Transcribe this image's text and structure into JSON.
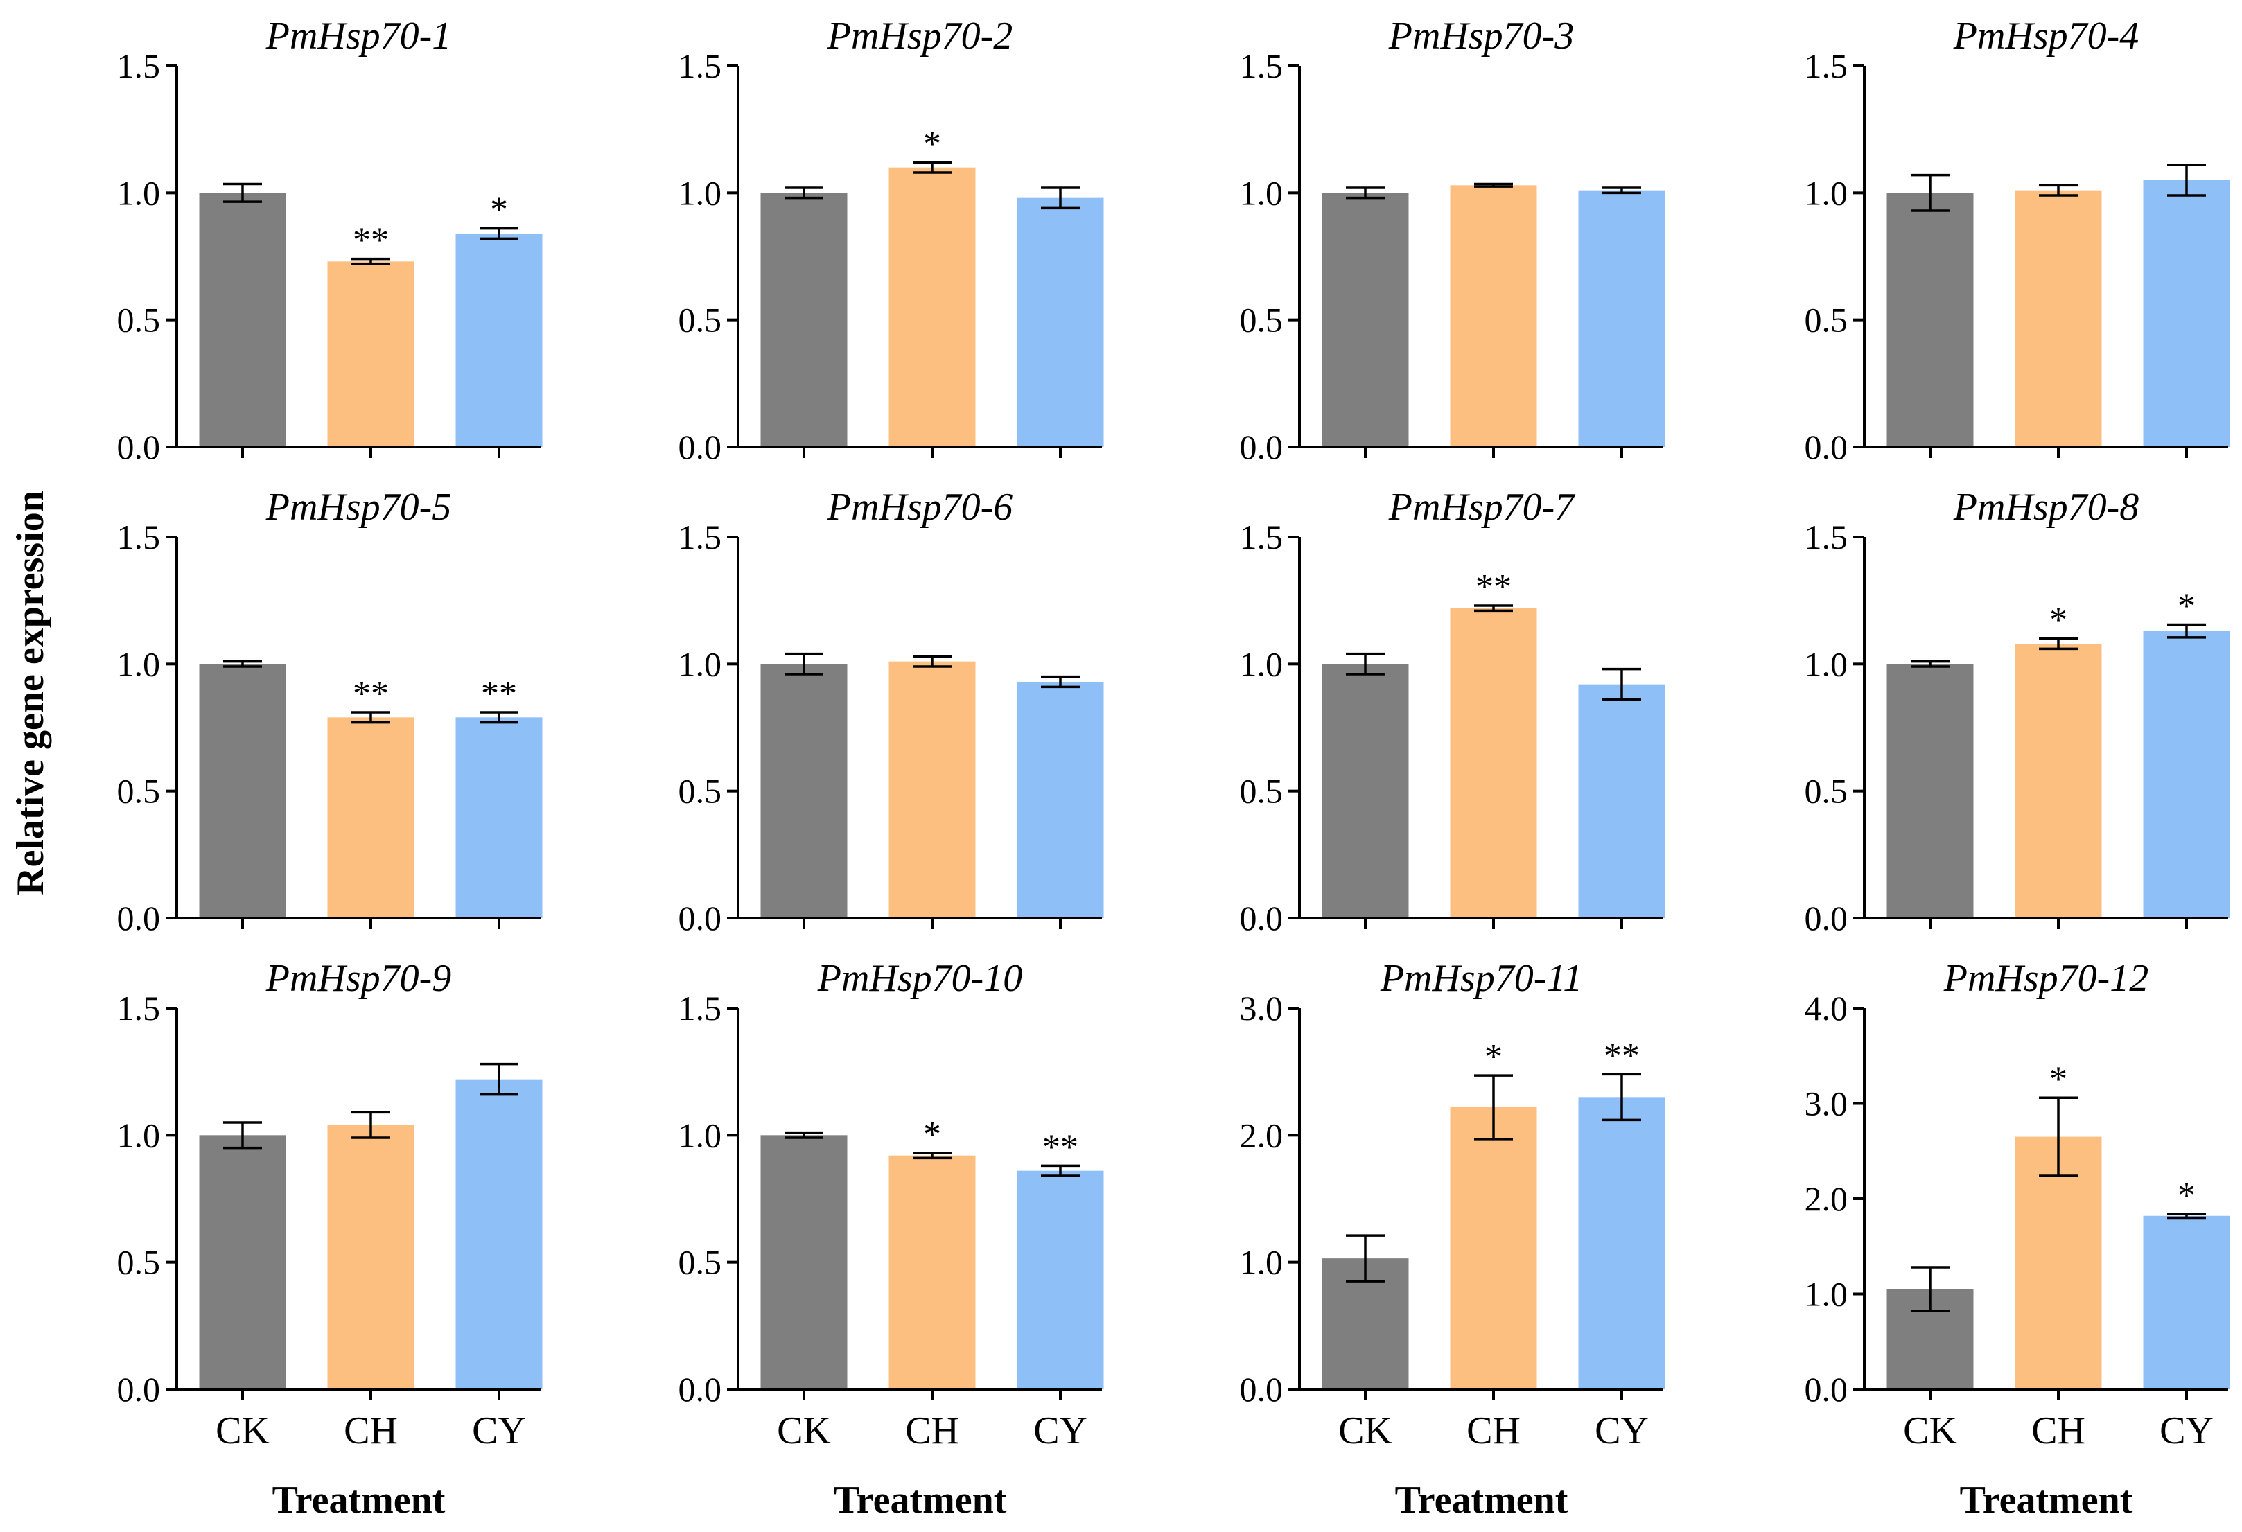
{
  "figure": {
    "ylabel": "Relative gene expression",
    "xlabel": "Treatment",
    "categories": [
      "CK",
      "CH",
      "CY"
    ],
    "colors": {
      "CK": "#7f7f7f",
      "CH": "#fdbf7f",
      "CY": "#8fbff7"
    }
  },
  "chart_data": [
    {
      "type": "bar",
      "title": "PmHsp70-1",
      "ylim": [
        0,
        1.5
      ],
      "yticks": [
        "0.0",
        "0.5",
        "1.0",
        "1.5"
      ],
      "values": [
        1.0,
        0.73,
        0.84
      ],
      "errors": [
        0.035,
        0.01,
        0.02
      ],
      "sig": [
        "",
        "**",
        "*"
      ]
    },
    {
      "type": "bar",
      "title": "PmHsp70-2",
      "ylim": [
        0,
        1.5
      ],
      "yticks": [
        "0.0",
        "0.5",
        "1.0",
        "1.5"
      ],
      "values": [
        1.0,
        1.1,
        0.98
      ],
      "errors": [
        0.02,
        0.02,
        0.04
      ],
      "sig": [
        "",
        "*",
        ""
      ]
    },
    {
      "type": "bar",
      "title": "PmHsp70-3",
      "ylim": [
        0,
        1.5
      ],
      "yticks": [
        "0.0",
        "0.5",
        "1.0",
        "1.5"
      ],
      "values": [
        1.0,
        1.03,
        1.01
      ],
      "errors": [
        0.02,
        0.005,
        0.01
      ],
      "sig": [
        "",
        "",
        ""
      ]
    },
    {
      "type": "bar",
      "title": "PmHsp70-4",
      "ylim": [
        0,
        1.5
      ],
      "yticks": [
        "0.0",
        "0.5",
        "1.0",
        "1.5"
      ],
      "values": [
        1.0,
        1.01,
        1.05
      ],
      "errors": [
        0.07,
        0.02,
        0.06
      ],
      "sig": [
        "",
        "",
        ""
      ]
    },
    {
      "type": "bar",
      "title": "PmHsp70-5",
      "ylim": [
        0,
        1.5
      ],
      "yticks": [
        "0.0",
        "0.5",
        "1.0",
        "1.5"
      ],
      "values": [
        1.0,
        0.79,
        0.79
      ],
      "errors": [
        0.01,
        0.02,
        0.02
      ],
      "sig": [
        "",
        "**",
        "**"
      ]
    },
    {
      "type": "bar",
      "title": "PmHsp70-6",
      "ylim": [
        0,
        1.5
      ],
      "yticks": [
        "0.0",
        "0.5",
        "1.0",
        "1.5"
      ],
      "values": [
        1.0,
        1.01,
        0.93
      ],
      "errors": [
        0.04,
        0.02,
        0.02
      ],
      "sig": [
        "",
        "",
        ""
      ]
    },
    {
      "type": "bar",
      "title": "PmHsp70-7",
      "ylim": [
        0,
        1.5
      ],
      "yticks": [
        "0.0",
        "0.5",
        "1.0",
        "1.5"
      ],
      "values": [
        1.0,
        1.22,
        0.92
      ],
      "errors": [
        0.04,
        0.01,
        0.06
      ],
      "sig": [
        "",
        "**",
        ""
      ]
    },
    {
      "type": "bar",
      "title": "PmHsp70-8",
      "ylim": [
        0,
        1.5
      ],
      "yticks": [
        "0.0",
        "0.5",
        "1.0",
        "1.5"
      ],
      "values": [
        1.0,
        1.08,
        1.13
      ],
      "errors": [
        0.01,
        0.02,
        0.025
      ],
      "sig": [
        "",
        "*",
        "*"
      ]
    },
    {
      "type": "bar",
      "title": "PmHsp70-9",
      "ylim": [
        0,
        1.5
      ],
      "yticks": [
        "0.0",
        "0.5",
        "1.0",
        "1.5"
      ],
      "values": [
        1.0,
        1.04,
        1.22
      ],
      "errors": [
        0.05,
        0.05,
        0.06
      ],
      "sig": [
        "",
        "",
        ""
      ]
    },
    {
      "type": "bar",
      "title": "PmHsp70-10",
      "ylim": [
        0,
        1.5
      ],
      "yticks": [
        "0.0",
        "0.5",
        "1.0",
        "1.5"
      ],
      "values": [
        1.0,
        0.92,
        0.86
      ],
      "errors": [
        0.01,
        0.01,
        0.02
      ],
      "sig": [
        "",
        "*",
        "**"
      ]
    },
    {
      "type": "bar",
      "title": "PmHsp70-11",
      "ylim": [
        0,
        3.0
      ],
      "yticks": [
        "0.0",
        "1.0",
        "2.0",
        "3.0"
      ],
      "values": [
        1.03,
        2.22,
        2.3
      ],
      "errors": [
        0.18,
        0.25,
        0.18
      ],
      "sig": [
        "",
        "*",
        "**"
      ]
    },
    {
      "type": "bar",
      "title": "PmHsp70-12",
      "ylim": [
        0,
        4.0
      ],
      "yticks": [
        "0.0",
        "1.0",
        "2.0",
        "3.0",
        "4.0"
      ],
      "values": [
        1.05,
        2.65,
        1.82
      ],
      "errors": [
        0.23,
        0.41,
        0.02
      ],
      "sig": [
        "",
        "*",
        "*"
      ]
    }
  ]
}
